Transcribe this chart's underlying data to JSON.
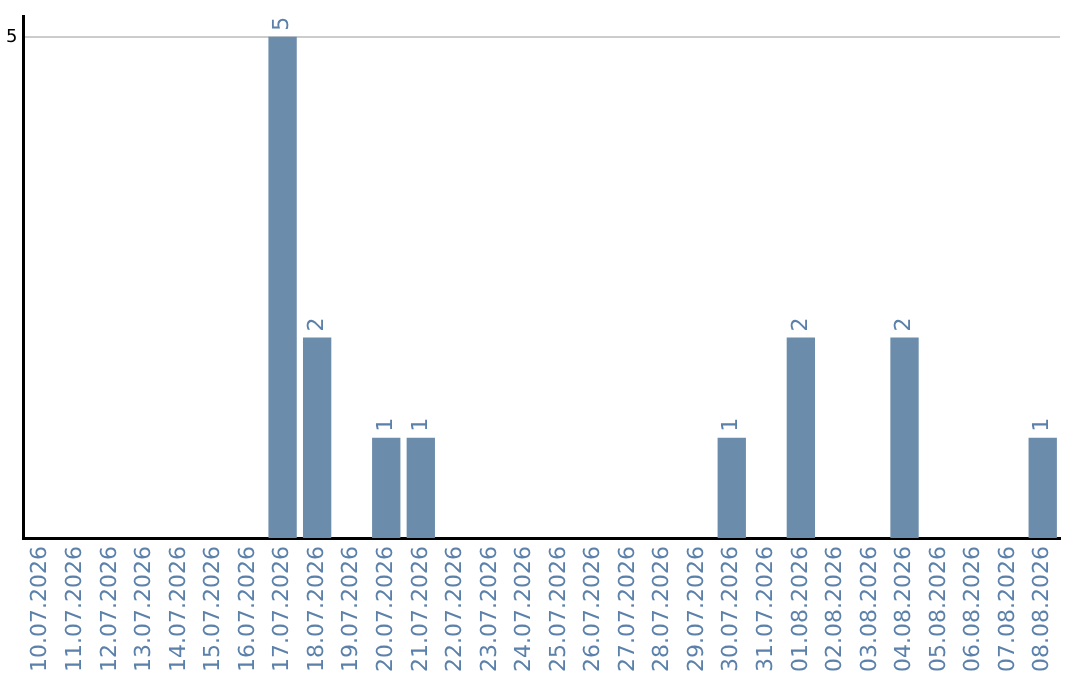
{
  "chart_data": {
    "type": "bar",
    "categories": [
      "10.07.2026",
      "11.07.2026",
      "12.07.2026",
      "13.07.2026",
      "14.07.2026",
      "15.07.2026",
      "16.07.2026",
      "17.07.2026",
      "18.07.2026",
      "19.07.2026",
      "20.07.2026",
      "21.07.2026",
      "22.07.2026",
      "23.07.2026",
      "24.07.2026",
      "25.07.2026",
      "26.07.2026",
      "27.07.2026",
      "28.07.2026",
      "29.07.2026",
      "30.07.2026",
      "31.07.2026",
      "01.08.2026",
      "02.08.2026",
      "03.08.2026",
      "04.08.2026",
      "05.08.2026",
      "06.08.2026",
      "07.08.2026",
      "08.08.2026"
    ],
    "values": [
      null,
      null,
      null,
      null,
      null,
      null,
      null,
      5,
      2,
      null,
      1,
      1,
      null,
      null,
      null,
      null,
      null,
      null,
      null,
      null,
      1,
      null,
      2,
      null,
      null,
      2,
      null,
      null,
      null,
      1
    ],
    "color": "#6b8caa",
    "ylim": [
      0,
      5.2
    ],
    "yticks": [
      5
    ],
    "grid": "y",
    "data_labels": true
  }
}
